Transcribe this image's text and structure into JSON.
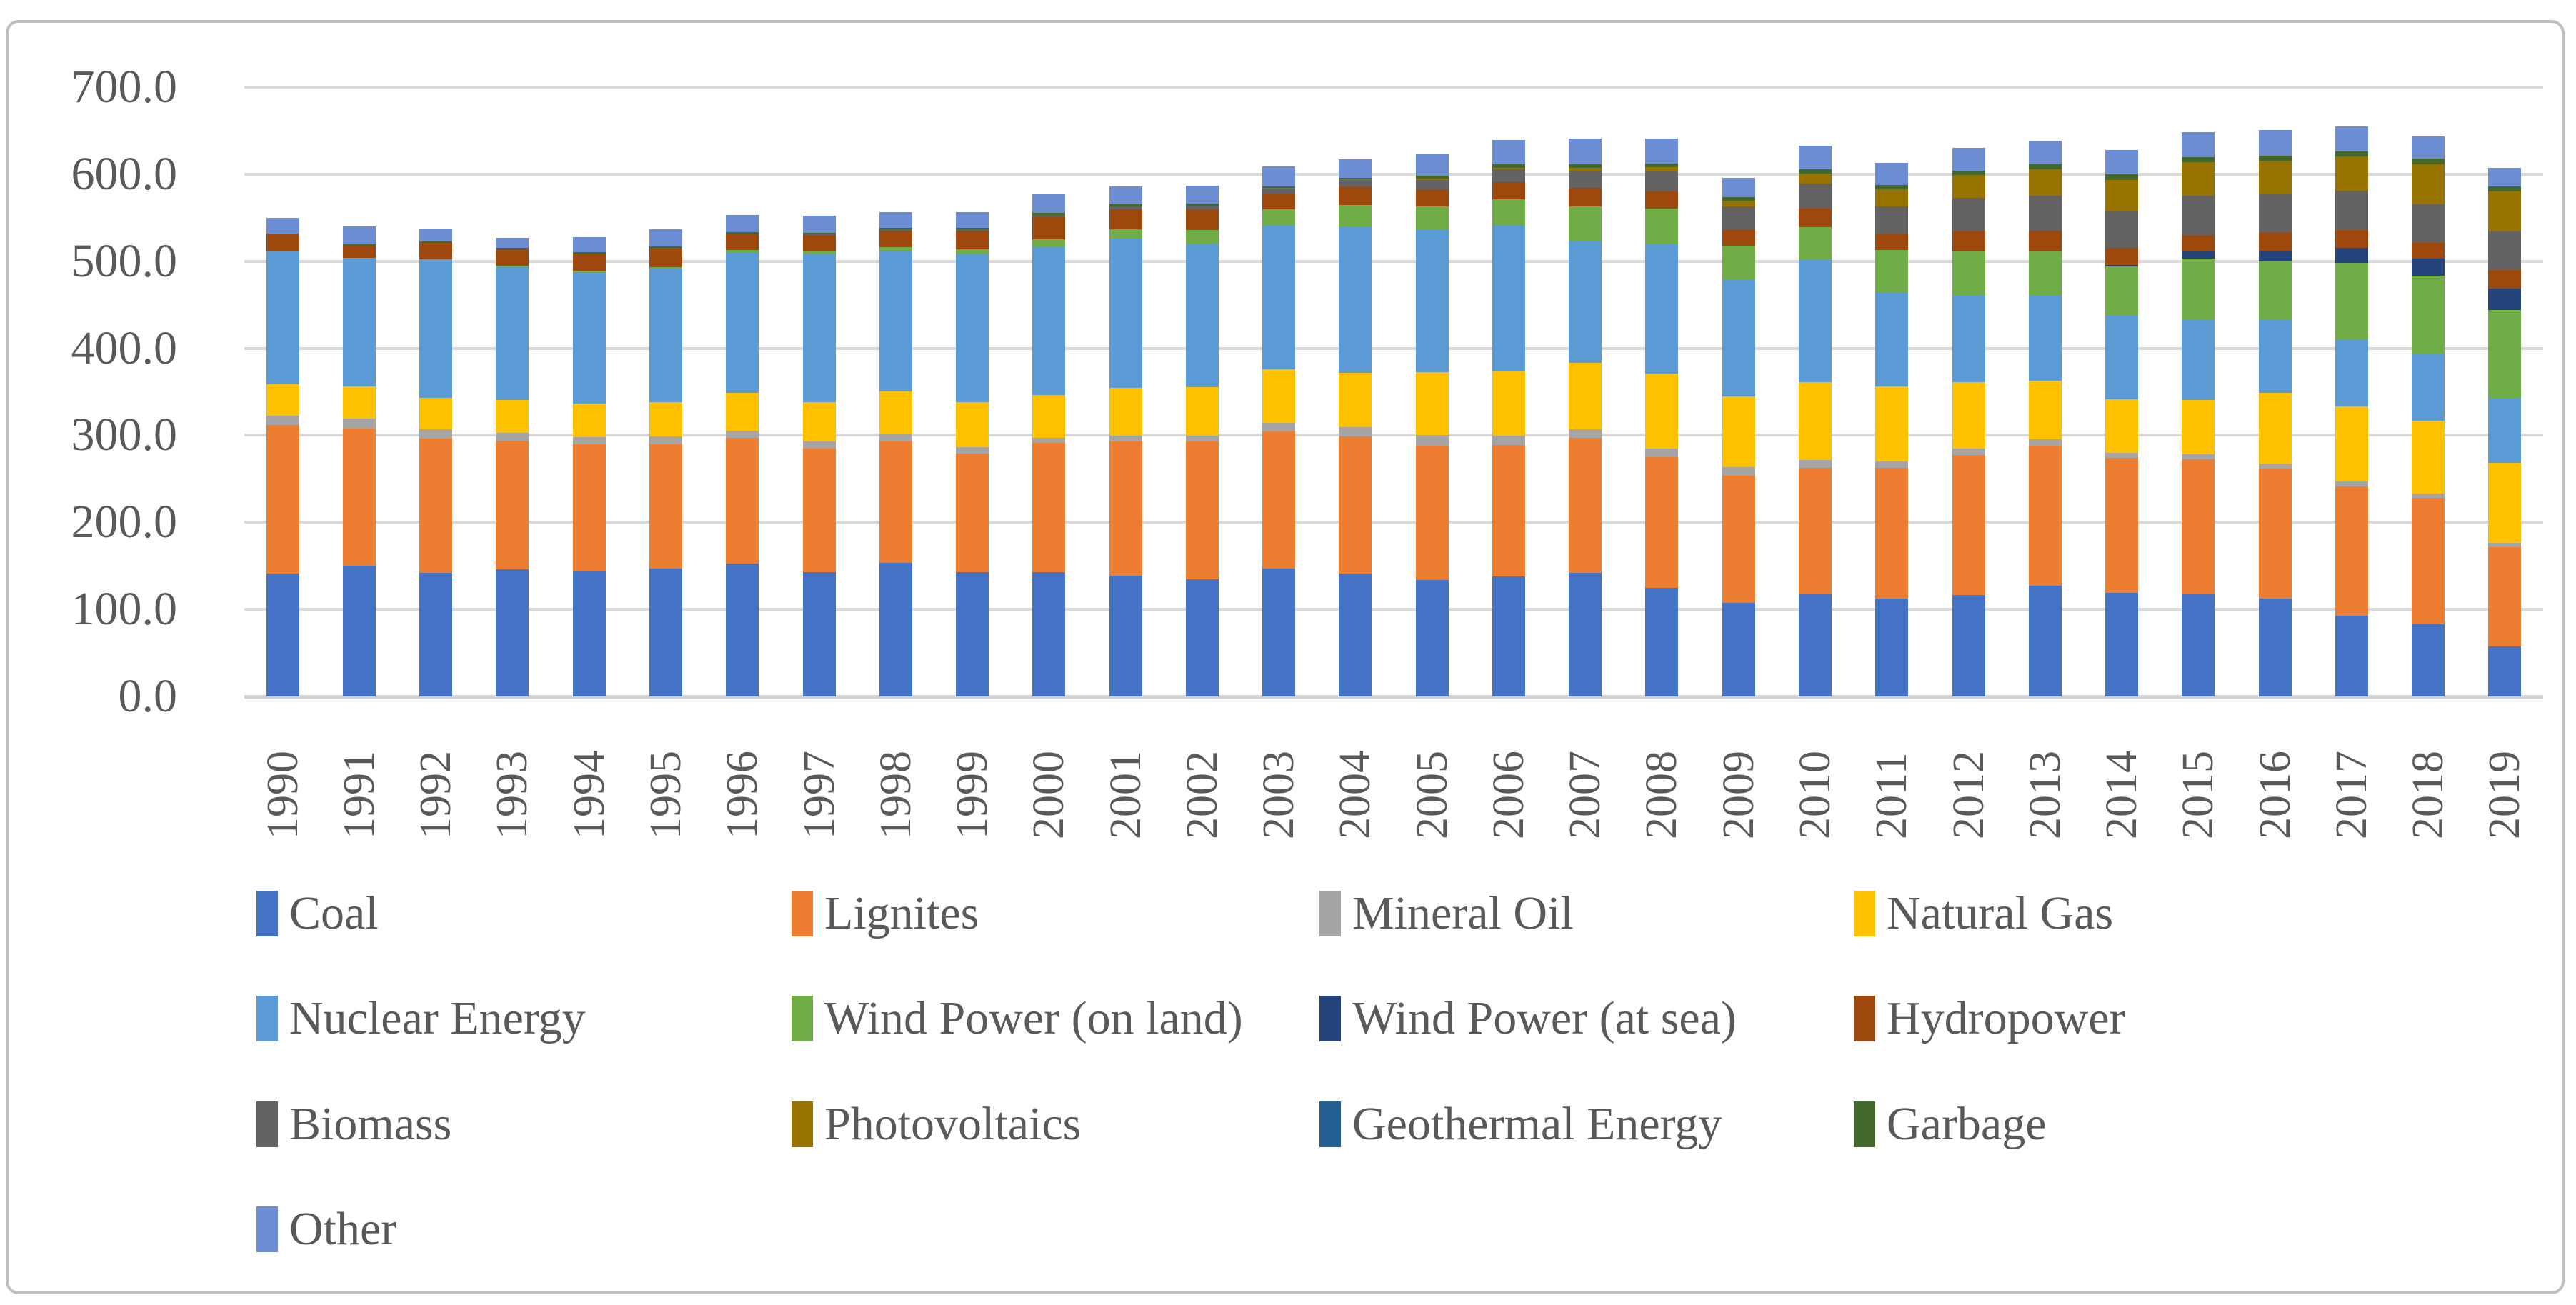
{
  "colors": {
    "background": "#FFFFFF",
    "frame_border": "#BFBFBF",
    "gridline": "#D9D9D9",
    "axis_text": "#595959"
  },
  "chart_data": {
    "type": "bar",
    "stacked": true,
    "title": "",
    "xlabel": "",
    "ylabel": "",
    "ylim": [
      0,
      700
    ],
    "ytick_step": 100,
    "ytick_labels": [
      "0.0",
      "100.0",
      "200.0",
      "300.0",
      "400.0",
      "500.0",
      "600.0",
      "700.0"
    ],
    "grid": true,
    "legend_position": "bottom",
    "legend_columns": 4,
    "categories": [
      "1990",
      "1991",
      "1992",
      "1993",
      "1994",
      "1995",
      "1996",
      "1997",
      "1998",
      "1999",
      "2000",
      "2001",
      "2002",
      "2003",
      "2004",
      "2005",
      "2006",
      "2007",
      "2008",
      "2009",
      "2010",
      "2011",
      "2012",
      "2013",
      "2014",
      "2015",
      "2016",
      "2017",
      "2018",
      "2019"
    ],
    "series": [
      {
        "id": "coal",
        "name": "Coal",
        "color": "#4472C4",
        "values": [
          140.8,
          149.8,
          141.9,
          146.0,
          143.3,
          147.1,
          152.7,
          143.1,
          153.4,
          143.1,
          143.1,
          138.4,
          134.6,
          146.5,
          141.1,
          134.1,
          137.9,
          142.0,
          124.6,
          107.9,
          117.0,
          112.4,
          116.4,
          127.3,
          118.6,
          117.7,
          112.2,
          92.9,
          82.6,
          57.5
        ]
      },
      {
        "id": "lignites",
        "name": "Lignites",
        "color": "#ED7D31",
        "values": [
          170.9,
          158.3,
          154.5,
          147.5,
          146.1,
          142.6,
          144.4,
          141.7,
          139.4,
          136.0,
          148.3,
          154.8,
          158.0,
          158.2,
          158.0,
          154.1,
          151.1,
          155.1,
          150.6,
          145.6,
          145.9,
          150.1,
          160.7,
          160.9,
          155.8,
          154.5,
          149.5,
          148.4,
          145.5,
          114.0
        ]
      },
      {
        "id": "mineral-oil",
        "name": "Mineral Oil",
        "color": "#A5A5A5",
        "values": [
          10.8,
          11.0,
          10.3,
          9.5,
          8.9,
          8.8,
          8.5,
          8.2,
          8.0,
          7.3,
          5.9,
          6.1,
          6.7,
          9.7,
          10.3,
          12.0,
          10.7,
          10.1,
          9.2,
          10.1,
          8.7,
          7.2,
          7.6,
          7.2,
          5.7,
          6.2,
          5.8,
          5.6,
          5.2,
          5.2
        ]
      },
      {
        "id": "natural-gas",
        "name": "Natural Gas",
        "color": "#FFC000",
        "values": [
          35.9,
          37.1,
          36.5,
          37.9,
          38.4,
          39.3,
          43.4,
          45.3,
          49.6,
          51.6,
          49.2,
          55.5,
          56.3,
          61.4,
          62.5,
          72.7,
          73.5,
          75.9,
          86.7,
          80.9,
          89.3,
          86.1,
          76.4,
          67.5,
          61.1,
          62.0,
          81.3,
          86.7,
          83.9,
          91.3
        ]
      },
      {
        "id": "nuclear-energy",
        "name": "Nuclear Energy",
        "color": "#5B9BD5",
        "values": [
          152.5,
          147.4,
          158.8,
          153.5,
          151.2,
          154.1,
          161.6,
          170.3,
          161.6,
          170.0,
          169.6,
          171.3,
          164.8,
          165.1,
          167.1,
          163.0,
          167.4,
          140.5,
          148.5,
          134.9,
          140.6,
          108.0,
          99.5,
          97.3,
          97.1,
          91.8,
          84.6,
          76.3,
          76.0,
          75.1
        ]
      },
      {
        "id": "wind-on-land",
        "name": "Wind Power (on land)",
        "color": "#70AD47",
        "values": [
          0.1,
          0.1,
          0.3,
          0.6,
          0.9,
          1.5,
          2.0,
          2.7,
          4.5,
          5.5,
          9.5,
          10.5,
          15.8,
          18.7,
          25.5,
          27.2,
          30.7,
          39.7,
          40.6,
          38.6,
          37.8,
          48.9,
          50.7,
          50.8,
          55.9,
          70.9,
          66.3,
          88.0,
          90.5,
          101.2
        ]
      },
      {
        "id": "wind-at-sea",
        "name": "Wind Power (at sea)",
        "color": "#24447B",
        "values": [
          0,
          0,
          0,
          0,
          0,
          0,
          0,
          0,
          0,
          0,
          0,
          0,
          0,
          0,
          0,
          0,
          0,
          0,
          0,
          0,
          0.2,
          0.6,
          0.7,
          0.9,
          1.4,
          8.3,
          12.1,
          17.7,
          19.3,
          24.7
        ]
      },
      {
        "id": "hydropower",
        "name": "Hydropower",
        "color": "#9E480E",
        "values": [
          19.7,
          14.6,
          18.6,
          19.0,
          19.7,
          21.6,
          18.8,
          19.0,
          19.0,
          21.3,
          24.9,
          23.2,
          23.7,
          17.7,
          21.0,
          19.6,
          20.0,
          21.2,
          20.4,
          19.0,
          21.0,
          17.7,
          22.1,
          23.0,
          19.6,
          19.0,
          20.5,
          20.2,
          18.0,
          20.6
        ]
      },
      {
        "id": "biomass",
        "name": "Biomass",
        "color": "#636363",
        "values": [
          0.2,
          0.3,
          0.3,
          0.4,
          0.6,
          0.7,
          0.8,
          1.0,
          1.6,
          1.7,
          2.9,
          3.3,
          4.0,
          6.6,
          7.9,
          10.9,
          14.0,
          19.8,
          22.9,
          25.9,
          28.7,
          31.9,
          38.5,
          40.1,
          42.2,
          44.6,
          45.0,
          45.0,
          44.7,
          44.4
        ]
      },
      {
        "id": "photovoltaics",
        "name": "Photovoltaics",
        "color": "#997300",
        "values": [
          0,
          0,
          0,
          0,
          0,
          0,
          0,
          0,
          0,
          0,
          0.1,
          0.1,
          0.2,
          0.3,
          0.6,
          1.3,
          2.2,
          3.1,
          4.4,
          6.6,
          11.7,
          19.6,
          26.4,
          31.0,
          36.1,
          38.7,
          38.1,
          39.4,
          45.8,
          46.4
        ]
      },
      {
        "id": "geothermal-energy",
        "name": "Geothermal Energy",
        "color": "#255E91",
        "values": [
          0,
          0,
          0,
          0,
          0,
          0,
          0,
          0,
          0,
          0,
          0,
          0,
          0,
          0,
          0,
          0,
          0,
          0,
          0,
          0,
          0,
          0,
          0,
          0.1,
          0.1,
          0.1,
          0.2,
          0.2,
          0.2,
          0.2
        ]
      },
      {
        "id": "garbage",
        "name": "Garbage",
        "color": "#43682B",
        "values": [
          1.2,
          1.3,
          1.3,
          1.3,
          1.5,
          1.3,
          1.4,
          1.4,
          1.6,
          1.7,
          1.8,
          1.9,
          1.9,
          2.0,
          2.1,
          3.0,
          3.7,
          4.2,
          4.5,
          4.6,
          4.7,
          4.8,
          5.0,
          5.4,
          6.1,
          5.8,
          5.9,
          6.0,
          6.2,
          5.8
        ]
      },
      {
        "id": "other",
        "name": "Other",
        "color": "#6C8DD1",
        "values": [
          17.8,
          20.3,
          15.3,
          11.3,
          16.9,
          19.8,
          19.2,
          19.6,
          18.0,
          18.1,
          21.3,
          21.3,
          20.7,
          22.6,
          21.4,
          24.7,
          28.4,
          29.0,
          28.3,
          21.5,
          27.5,
          25.8,
          26.1,
          27.2,
          28.1,
          28.7,
          29.2,
          28.6,
          25.9,
          20.6
        ]
      }
    ]
  }
}
